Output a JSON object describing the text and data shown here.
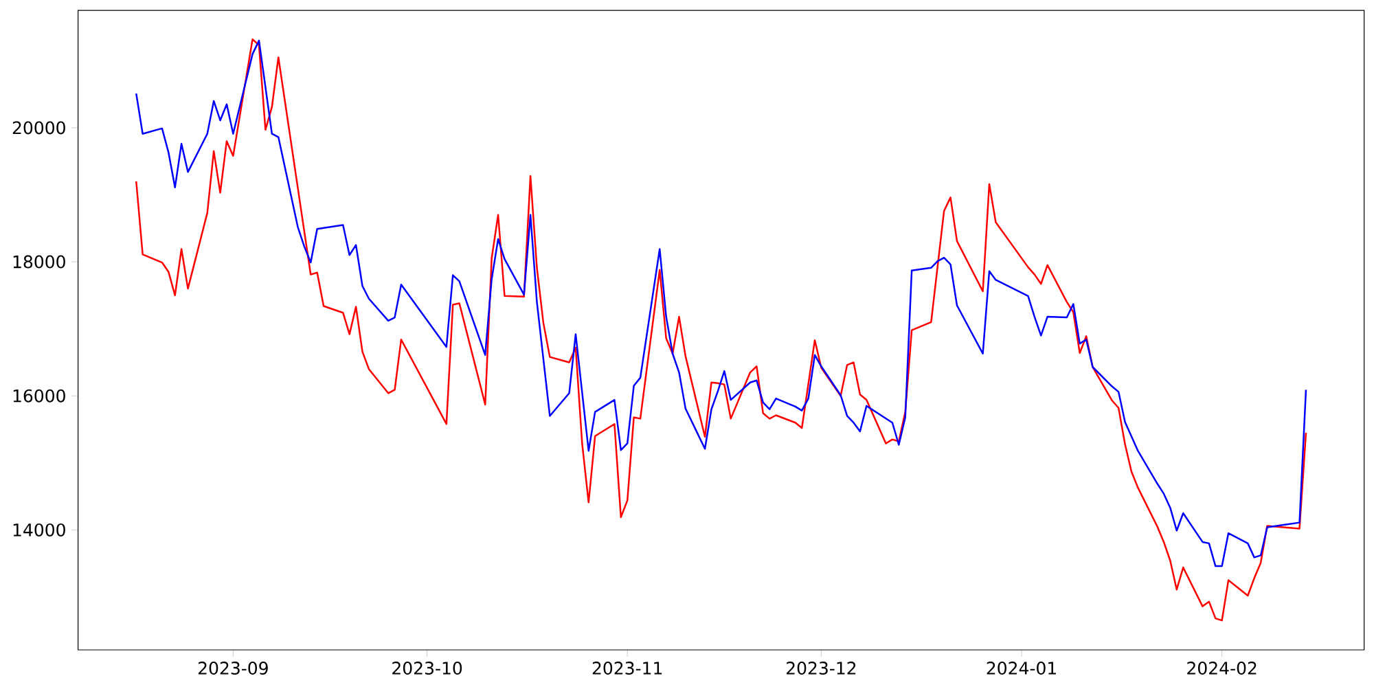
{
  "chart_data": {
    "type": "line",
    "xlim": [
      "2023-08-08",
      "2024-02-23"
    ],
    "ylim": [
      12210,
      21750
    ],
    "xticks": [
      {
        "value": "2023-09-01",
        "label": "2023-09"
      },
      {
        "value": "2023-10-01",
        "label": "2023-10"
      },
      {
        "value": "2023-11-01",
        "label": "2023-11"
      },
      {
        "value": "2023-12-01",
        "label": "2023-12"
      },
      {
        "value": "2024-01-01",
        "label": "2024-01"
      },
      {
        "value": "2024-02-01",
        "label": "2024-02"
      }
    ],
    "yticks": [
      14000,
      16000,
      18000,
      20000
    ],
    "line_style": "solid",
    "series": [
      {
        "color": "#ff0000",
        "x": [
          "2023-08-17",
          "2023-08-18",
          "2023-08-21",
          "2023-08-22",
          "2023-08-23",
          "2023-08-24",
          "2023-08-25",
          "2023-08-28",
          "2023-08-29",
          "2023-08-30",
          "2023-08-31",
          "2023-09-01",
          "2023-09-04",
          "2023-09-05",
          "2023-09-06",
          "2023-09-07",
          "2023-09-08",
          "2023-09-13",
          "2023-09-14",
          "2023-09-15",
          "2023-09-18",
          "2023-09-19",
          "2023-09-20",
          "2023-09-21",
          "2023-09-22",
          "2023-09-25",
          "2023-09-26",
          "2023-09-27",
          "2023-10-04",
          "2023-10-05",
          "2023-10-06",
          "2023-10-10",
          "2023-10-11",
          "2023-10-12",
          "2023-10-13",
          "2023-10-16",
          "2023-10-17",
          "2023-10-18",
          "2023-10-19",
          "2023-10-20",
          "2023-10-23",
          "2023-10-24",
          "2023-10-25",
          "2023-10-26",
          "2023-10-27",
          "2023-10-30",
          "2023-10-31",
          "2023-11-01",
          "2023-11-02",
          "2023-11-03",
          "2023-11-06",
          "2023-11-07",
          "2023-11-08",
          "2023-11-09",
          "2023-11-10",
          "2023-11-13",
          "2023-11-14",
          "2023-11-15",
          "2023-11-16",
          "2023-11-17",
          "2023-11-20",
          "2023-11-21",
          "2023-11-22",
          "2023-11-23",
          "2023-11-24",
          "2023-11-27",
          "2023-11-28",
          "2023-11-30",
          "2023-12-01",
          "2023-12-04",
          "2023-12-05",
          "2023-12-06",
          "2023-12-07",
          "2023-12-08",
          "2023-12-11",
          "2023-12-12",
          "2023-12-13",
          "2023-12-14",
          "2023-12-15",
          "2023-12-18",
          "2023-12-20",
          "2023-12-21",
          "2023-12-22",
          "2023-12-26",
          "2023-12-27",
          "2023-12-28",
          "2024-01-02",
          "2024-01-03",
          "2024-01-04",
          "2024-01-05",
          "2024-01-08",
          "2024-01-09",
          "2024-01-10",
          "2024-01-11",
          "2024-01-12",
          "2024-01-15",
          "2024-01-16",
          "2024-01-17",
          "2024-01-18",
          "2024-01-19",
          "2024-01-22",
          "2024-01-23",
          "2024-01-24",
          "2024-01-25",
          "2024-01-26",
          "2024-01-29",
          "2024-01-30",
          "2024-01-31",
          "2024-02-01",
          "2024-02-02",
          "2024-02-05",
          "2024-02-06",
          "2024-02-07",
          "2024-02-08",
          "2024-02-13",
          "2024-02-14"
        ],
        "values": [
          19200,
          18110,
          17990,
          17850,
          17500,
          18190,
          17600,
          18730,
          19650,
          19030,
          19800,
          19580,
          21320,
          21230,
          19970,
          20310,
          21050,
          17810,
          17840,
          17340,
          17240,
          16920,
          17330,
          16660,
          16400,
          16040,
          16090,
          16840,
          15580,
          17360,
          17380,
          15870,
          18050,
          18700,
          17490,
          17480,
          19280,
          17910,
          17090,
          16580,
          16500,
          16720,
          15290,
          14410,
          15400,
          15580,
          14190,
          14440,
          15680,
          15660,
          17880,
          16860,
          16630,
          17180,
          16590,
          15390,
          16200,
          16190,
          16170,
          15660,
          16350,
          16440,
          15740,
          15660,
          15710,
          15600,
          15520,
          16830,
          16420,
          16000,
          16460,
          16500,
          16020,
          15940,
          15290,
          15350,
          15320,
          15760,
          16980,
          17100,
          18760,
          18960,
          18310,
          17560,
          19160,
          18590,
          17920,
          17810,
          17670,
          17950,
          17400,
          17250,
          16640,
          16890,
          16430,
          15930,
          15820,
          15280,
          14870,
          14630,
          14050,
          13820,
          13540,
          13110,
          13440,
          12860,
          12930,
          12680,
          12650,
          13250,
          13020,
          13280,
          13510,
          14060,
          14020,
          15450
        ]
      },
      {
        "color": "#0000ff",
        "x": [
          "2023-08-17",
          "2023-08-18",
          "2023-08-21",
          "2023-08-22",
          "2023-08-23",
          "2023-08-24",
          "2023-08-25",
          "2023-08-28",
          "2023-08-29",
          "2023-08-30",
          "2023-08-31",
          "2023-09-01",
          "2023-09-04",
          "2023-09-05",
          "2023-09-07",
          "2023-09-08",
          "2023-09-11",
          "2023-09-12",
          "2023-09-13",
          "2023-09-14",
          "2023-09-18",
          "2023-09-19",
          "2023-09-20",
          "2023-09-21",
          "2023-09-22",
          "2023-09-25",
          "2023-09-26",
          "2023-09-27",
          "2023-10-04",
          "2023-10-05",
          "2023-10-06",
          "2023-10-10",
          "2023-10-11",
          "2023-10-12",
          "2023-10-13",
          "2023-10-16",
          "2023-10-17",
          "2023-10-18",
          "2023-10-20",
          "2023-10-23",
          "2023-10-24",
          "2023-10-26",
          "2023-10-27",
          "2023-10-30",
          "2023-10-31",
          "2023-11-01",
          "2023-11-02",
          "2023-11-03",
          "2023-11-06",
          "2023-11-07",
          "2023-11-08",
          "2023-11-09",
          "2023-11-10",
          "2023-11-13",
          "2023-11-14",
          "2023-11-15",
          "2023-11-16",
          "2023-11-17",
          "2023-11-20",
          "2023-11-21",
          "2023-11-22",
          "2023-11-23",
          "2023-11-24",
          "2023-11-27",
          "2023-11-28",
          "2023-11-29",
          "2023-11-30",
          "2023-12-01",
          "2023-12-04",
          "2023-12-05",
          "2023-12-06",
          "2023-12-07",
          "2023-12-08",
          "2023-12-12",
          "2023-12-13",
          "2023-12-14",
          "2023-12-15",
          "2023-12-18",
          "2023-12-19",
          "2023-12-20",
          "2023-12-21",
          "2023-12-22",
          "2023-12-26",
          "2023-12-27",
          "2023-12-28",
          "2024-01-02",
          "2024-01-03",
          "2024-01-04",
          "2024-01-05",
          "2024-01-08",
          "2024-01-09",
          "2024-01-10",
          "2024-01-11",
          "2024-01-12",
          "2024-01-15",
          "2024-01-16",
          "2024-01-17",
          "2024-01-19",
          "2024-01-22",
          "2024-01-23",
          "2024-01-24",
          "2024-01-25",
          "2024-01-26",
          "2024-01-29",
          "2024-01-30",
          "2024-01-31",
          "2024-02-01",
          "2024-02-02",
          "2024-02-05",
          "2024-02-06",
          "2024-02-07",
          "2024-02-08",
          "2024-02-13",
          "2024-02-14"
        ],
        "values": [
          20510,
          19910,
          19990,
          19630,
          19110,
          19760,
          19340,
          19910,
          20400,
          20110,
          20350,
          19910,
          21100,
          21300,
          19910,
          19860,
          18520,
          18230,
          17990,
          18490,
          18550,
          18100,
          18250,
          17640,
          17450,
          17120,
          17170,
          17660,
          16730,
          17800,
          17710,
          16610,
          17740,
          18340,
          18040,
          17510,
          18700,
          17400,
          15700,
          16040,
          16920,
          15180,
          15760,
          15940,
          15190,
          15290,
          16150,
          16270,
          18190,
          17180,
          16630,
          16350,
          15810,
          15210,
          15800,
          16070,
          16370,
          15940,
          16200,
          16230,
          15900,
          15800,
          15960,
          15840,
          15780,
          15960,
          16610,
          16440,
          16010,
          15700,
          15600,
          15470,
          15850,
          15600,
          15270,
          15680,
          17870,
          17910,
          18010,
          18060,
          17960,
          17350,
          16630,
          17860,
          17730,
          17490,
          17180,
          16900,
          17180,
          17170,
          17370,
          16780,
          16840,
          16430,
          16140,
          16060,
          15610,
          15180,
          14690,
          14540,
          14330,
          13990,
          14250,
          13820,
          13800,
          13460,
          13460,
          13950,
          13800,
          13590,
          13620,
          14040,
          14110,
          16090
        ]
      }
    ]
  }
}
